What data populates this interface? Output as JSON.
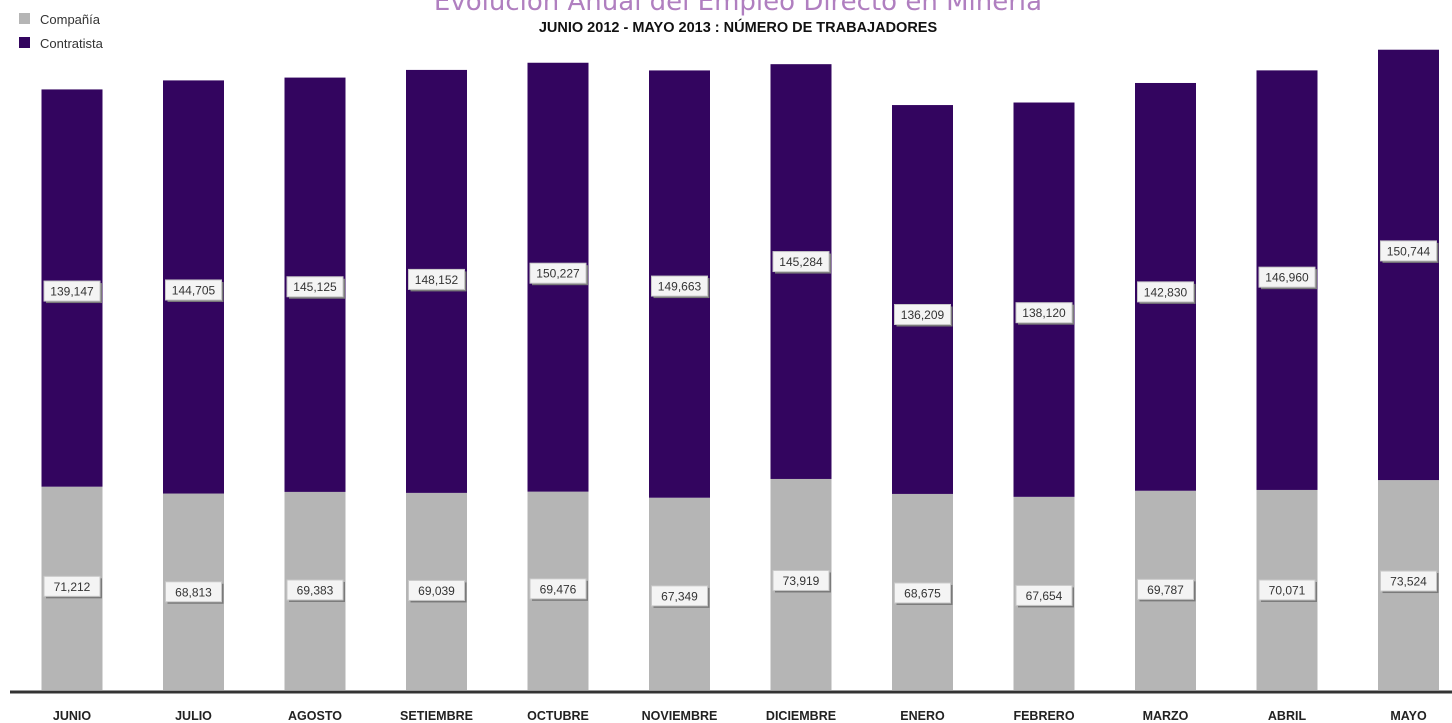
{
  "chart_data": {
    "type": "bar",
    "stacked": true,
    "title": "Evolución Anual del Empleo Directo en Minería",
    "subtitle": "JUNIO 2012 - MAYO 2013 :  NÚMERO DE TRABAJADORES",
    "legend_position": "top-left",
    "grid": false,
    "categories": [
      "JUNIO",
      "JULIO",
      "AGOSTO",
      "SETIEMBRE",
      "OCTUBRE",
      "NOVIEMBRE",
      "DICIEMBRE",
      "ENERO",
      "FEBRERO",
      "MARZO",
      "ABRIL",
      "MAYO"
    ],
    "series": [
      {
        "name": "Compañía",
        "color": "#b5b5b5",
        "values": [
          71212,
          68813,
          69383,
          69039,
          69476,
          67349,
          73919,
          68675,
          67654,
          69787,
          70071,
          73524
        ],
        "labels": [
          "71,212",
          "68,813",
          "69,383",
          "69,039",
          "69,476",
          "67,349",
          "73,919",
          "68,675",
          "67,654",
          "69,787",
          "70,071",
          "73,524"
        ]
      },
      {
        "name": "Contratista",
        "color": "#33055f",
        "values": [
          139147,
          144705,
          145125,
          148152,
          150227,
          149663,
          145284,
          136209,
          138120,
          142830,
          146960,
          150744
        ],
        "labels": [
          "139,147",
          "144,705",
          "145,125",
          "148,152",
          "150,227",
          "149,663",
          "145,284",
          "136,209",
          "138,120",
          "142,830",
          "146,960",
          "150,744"
        ]
      }
    ]
  }
}
